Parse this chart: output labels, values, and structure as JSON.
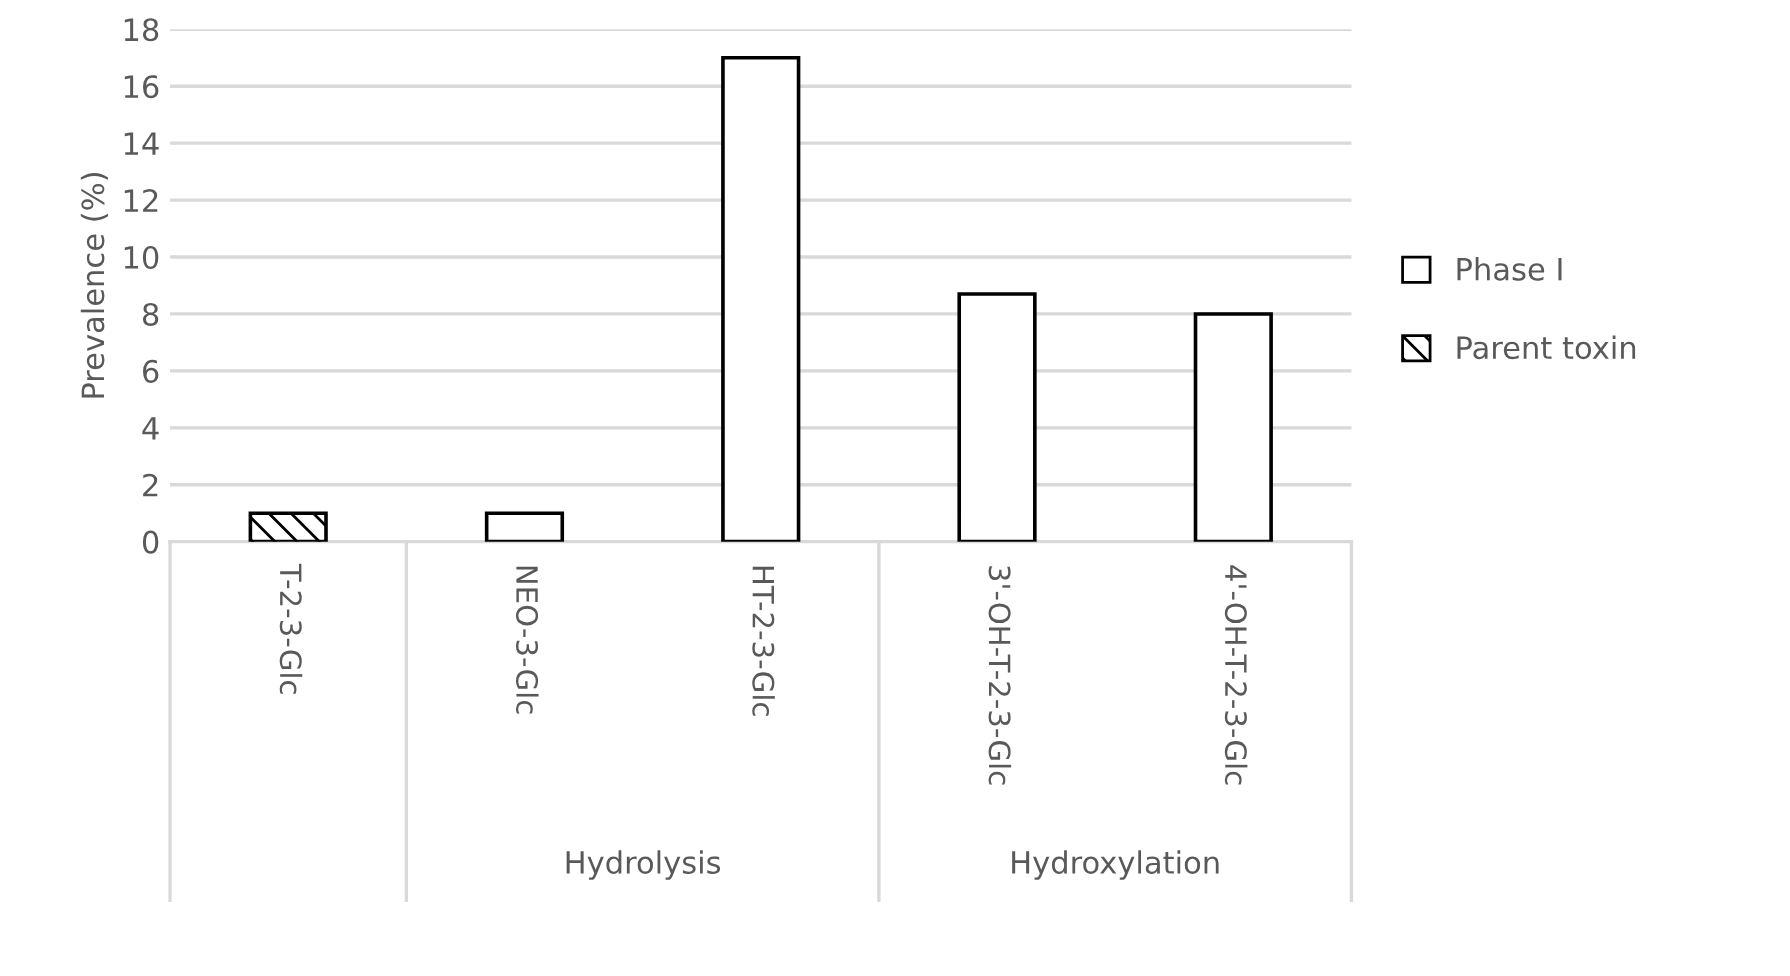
{
  "chart_data": {
    "type": "bar",
    "ylabel": "Prevalence (%)",
    "categories": [
      "T-2-3-Glc",
      "NEO-3-Glc",
      "HT-2-3-Glc",
      "3'-OH-T-2-3-Glc",
      "4'-OH-T-2-3-Glc"
    ],
    "series": [
      {
        "name": "Phase I",
        "color": "#ffffff",
        "values": [
          null,
          1,
          17,
          8.7,
          8
        ]
      },
      {
        "name": "Parent toxin",
        "color": "#000000",
        "values": [
          1,
          null,
          null,
          null,
          null
        ]
      }
    ],
    "ylim": [
      0,
      18
    ],
    "yticks": [
      0,
      2,
      4,
      6,
      8,
      10,
      12,
      14,
      16,
      18
    ],
    "grid": "y",
    "legend": "right",
    "annotations": [
      "Hydrolysis",
      "Hydroxylation"
    ]
  }
}
